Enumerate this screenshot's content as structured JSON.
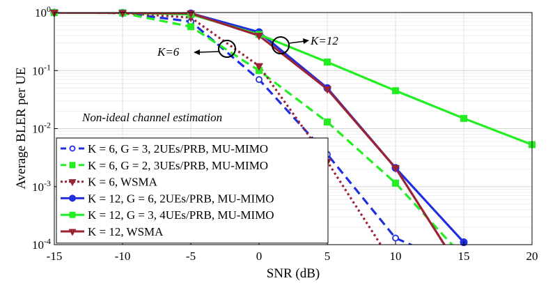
{
  "chart_data": {
    "type": "line",
    "title": "",
    "xlabel": "SNR (dB)",
    "ylabel": "Average BLER per UE",
    "xlim": [
      -15,
      20
    ],
    "ylim": [
      0.0001,
      1
    ],
    "yscale": "log",
    "grid": true,
    "x_ticks": [
      -15,
      -10,
      -5,
      0,
      5,
      10,
      15,
      20
    ],
    "x_tick_labels": [
      "-15",
      "-10",
      "-5",
      "0",
      "5",
      "10",
      "15",
      "20"
    ],
    "y_tick_labels": [
      {
        "base": "10",
        "exp": "0"
      },
      {
        "base": "10",
        "exp": "-1"
      },
      {
        "base": "10",
        "exp": "-2"
      },
      {
        "base": "10",
        "exp": "-3"
      },
      {
        "base": "10",
        "exp": "-4"
      }
    ],
    "legend_position": "bottom-left",
    "annotations": {
      "k6": "K=6",
      "k12": "K=12",
      "condition": "Non-ideal channel estimation"
    },
    "series": [
      {
        "name": "K = 6, G = 3, 2UEs/PRB, MU-MIMO",
        "color": "#1f2fe0",
        "dash": "dashed",
        "marker": "circle-open",
        "x": [
          -15,
          -10,
          -5,
          0,
          5,
          10,
          15
        ],
        "y": [
          1.0,
          0.98,
          0.7,
          0.07,
          0.0036,
          0.00013,
          4e-05
        ]
      },
      {
        "name": "K = 6, G = 2, 3UEs/PRB, MU-MIMO",
        "color": "#22ee22",
        "dash": "dashed",
        "marker": "square-filled",
        "x": [
          -15,
          -10,
          -5,
          0,
          5,
          10,
          15
        ],
        "y": [
          1.0,
          0.98,
          0.57,
          0.1,
          0.013,
          0.00115,
          6e-05
        ]
      },
      {
        "name": "K = 6, WSMA",
        "color": "#9b2335",
        "dash": "dotted",
        "marker": "triangle-down",
        "x": [
          -15,
          -10,
          -5,
          0,
          5,
          10
        ],
        "y": [
          1.0,
          0.98,
          0.82,
          0.12,
          0.0027,
          4e-05
        ]
      },
      {
        "name": "K = 12, G = 6, 2UEs/PRB, MU-MIMO",
        "color": "#1f2fe0",
        "dash": "solid",
        "marker": "circle-filled",
        "x": [
          -15,
          -10,
          -5,
          0,
          5,
          10,
          15
        ],
        "y": [
          1.0,
          0.99,
          0.97,
          0.46,
          0.05,
          0.0021,
          0.00011
        ]
      },
      {
        "name": "K = 12, G = 3, 4UEs/PRB, MU-MIMO",
        "color": "#22ee22",
        "dash": "solid",
        "marker": "square-filled",
        "x": [
          -15,
          -10,
          -5,
          0,
          5,
          10,
          15,
          20
        ],
        "y": [
          1.0,
          0.99,
          0.93,
          0.42,
          0.14,
          0.045,
          0.015,
          0.0053
        ]
      },
      {
        "name": "K = 12, WSMA",
        "color": "#9b2335",
        "dash": "solid",
        "marker": "triangle-down",
        "x": [
          -15,
          -10,
          -5,
          0,
          5,
          10,
          15
        ],
        "y": [
          1.0,
          0.99,
          0.97,
          0.4,
          0.048,
          0.0021,
          3e-05
        ]
      }
    ]
  }
}
